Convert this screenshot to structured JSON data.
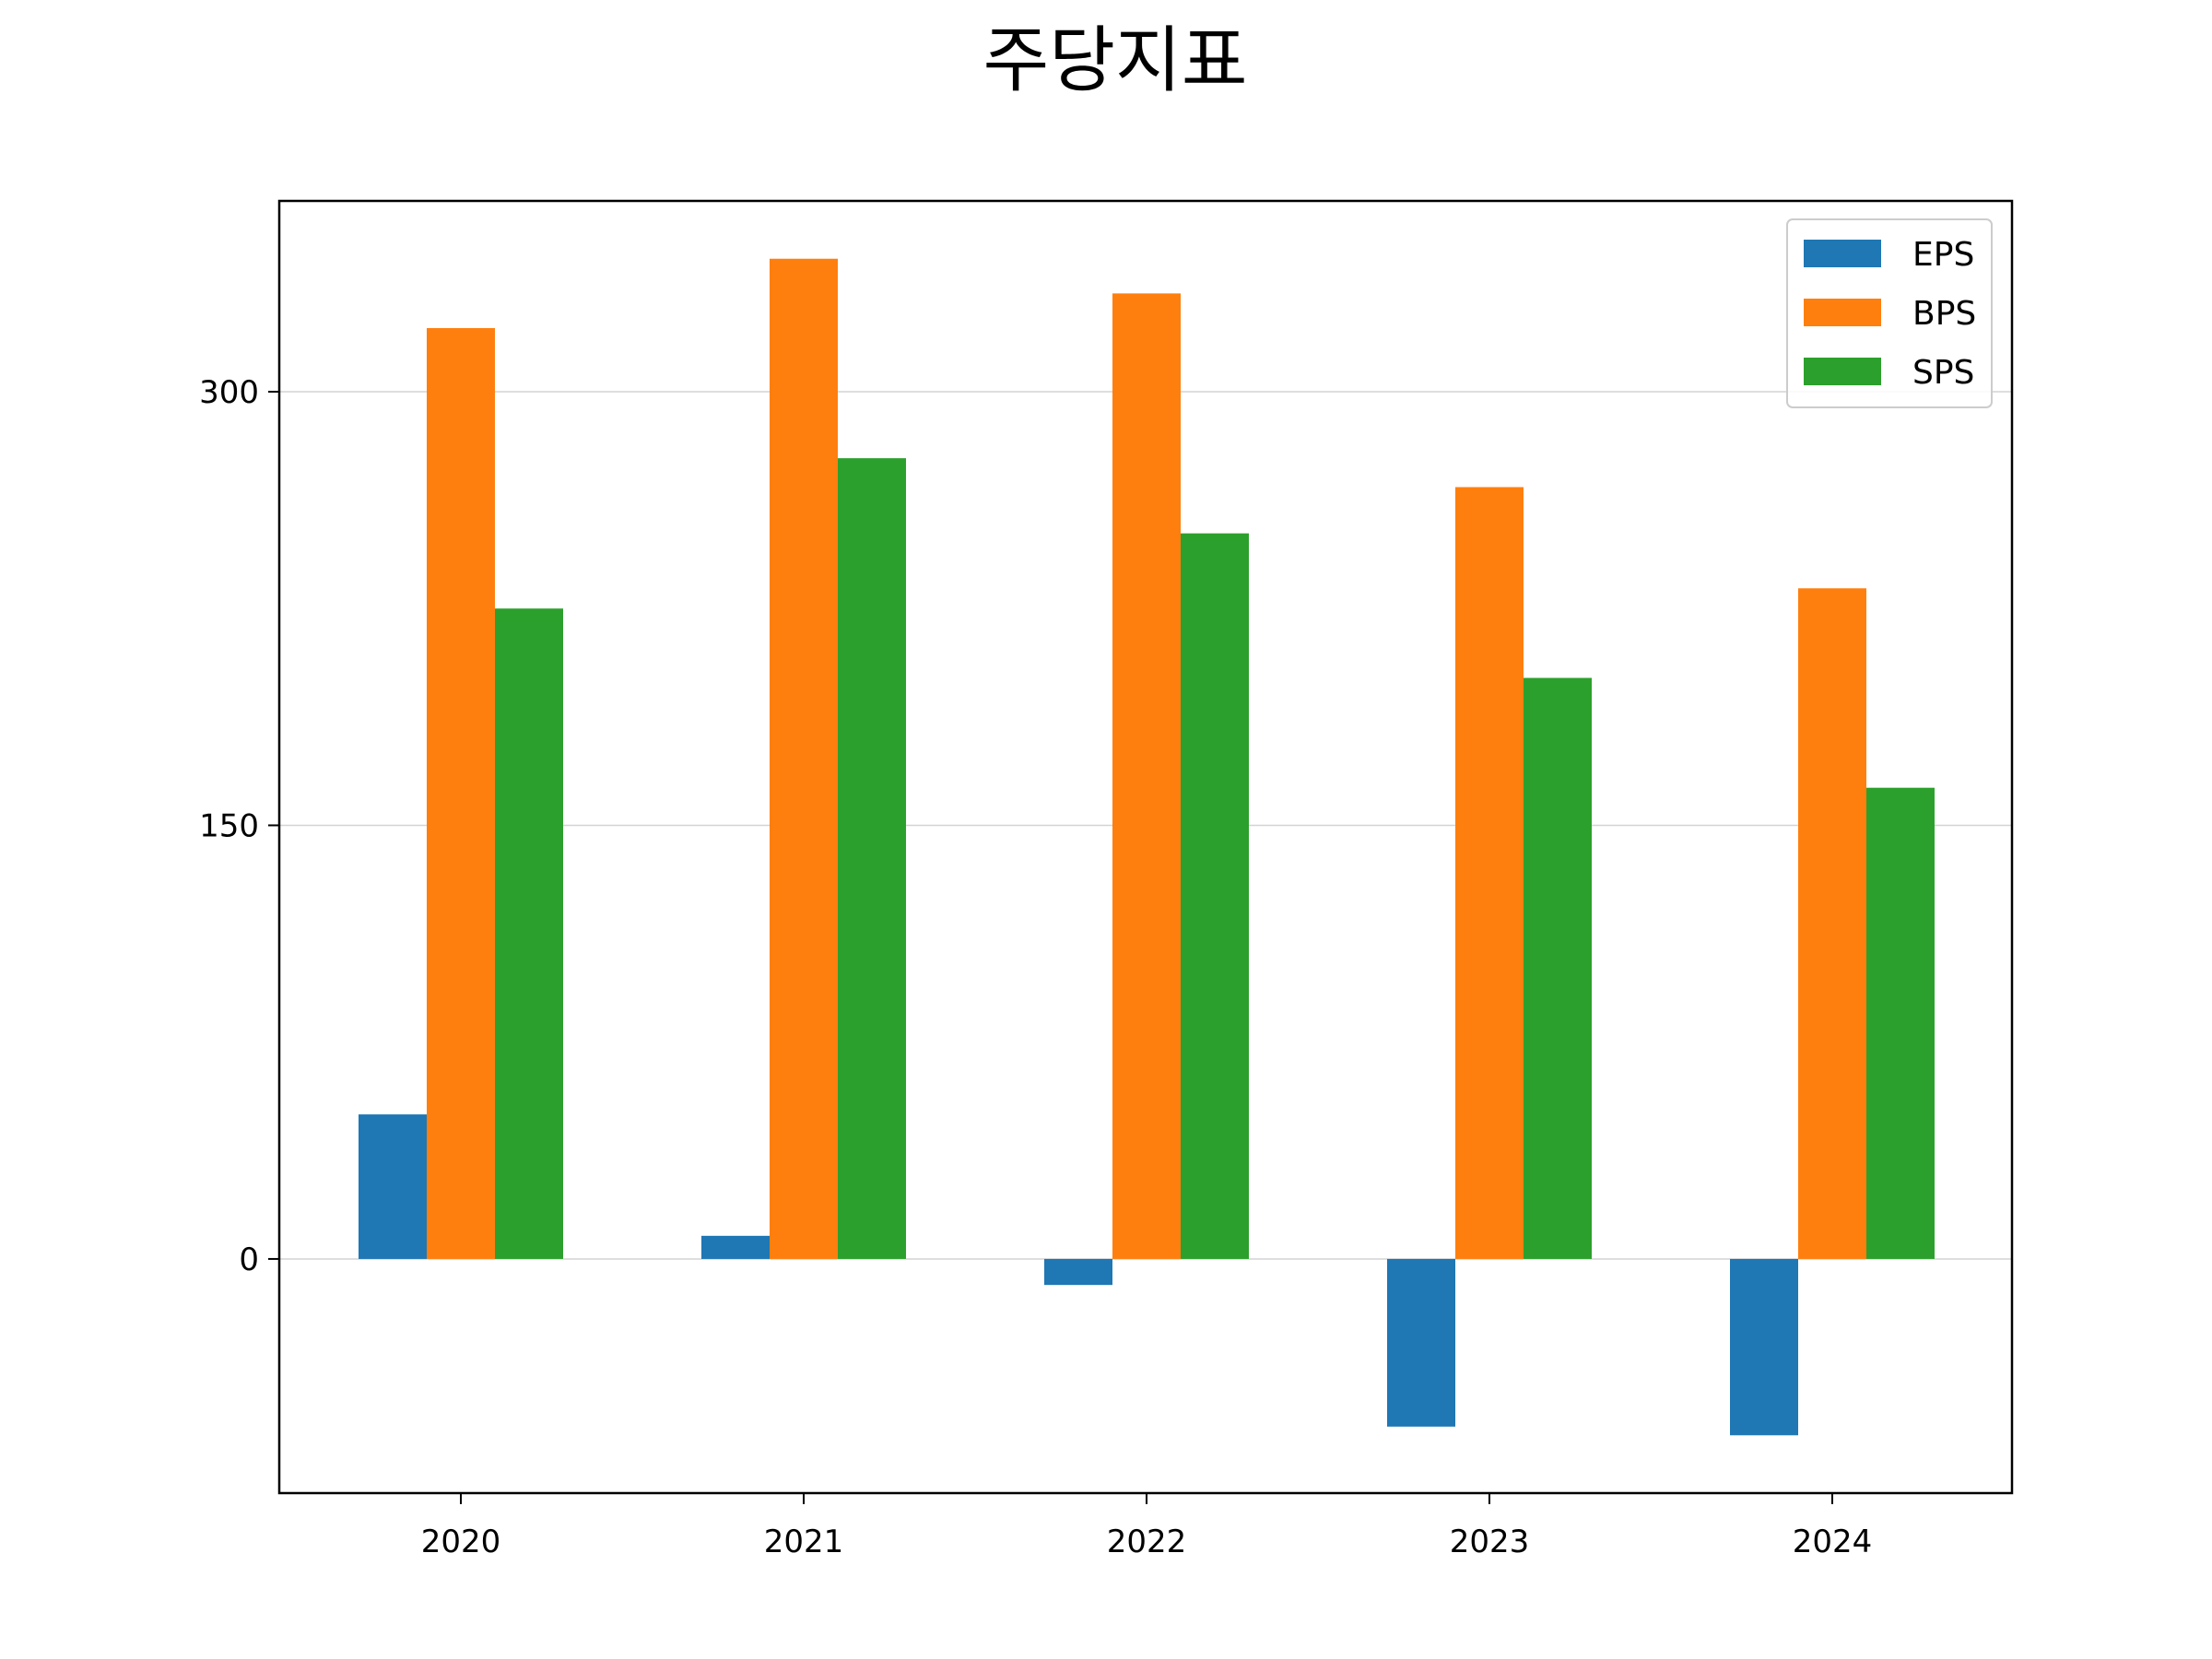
{
  "chart_data": {
    "type": "bar",
    "title": "주당지표",
    "xlabel": "",
    "ylabel": "",
    "categories": [
      "2020",
      "2021",
      "2022",
      "2023",
      "2024"
    ],
    "series": [
      {
        "name": "EPS",
        "values": [
          50,
          8,
          -9,
          -58,
          -61
        ],
        "color": "#1f77b4"
      },
      {
        "name": "BPS",
        "values": [
          322,
          346,
          334,
          267,
          232
        ],
        "color": "#ff7f0e"
      },
      {
        "name": "SPS",
        "values": [
          225,
          277,
          251,
          201,
          163
        ],
        "color": "#2ca02c"
      }
    ],
    "ylim": [
      -81,
      366
    ],
    "yticks": [
      0,
      150,
      300
    ],
    "grid": "y",
    "legend_position": "top-right"
  }
}
